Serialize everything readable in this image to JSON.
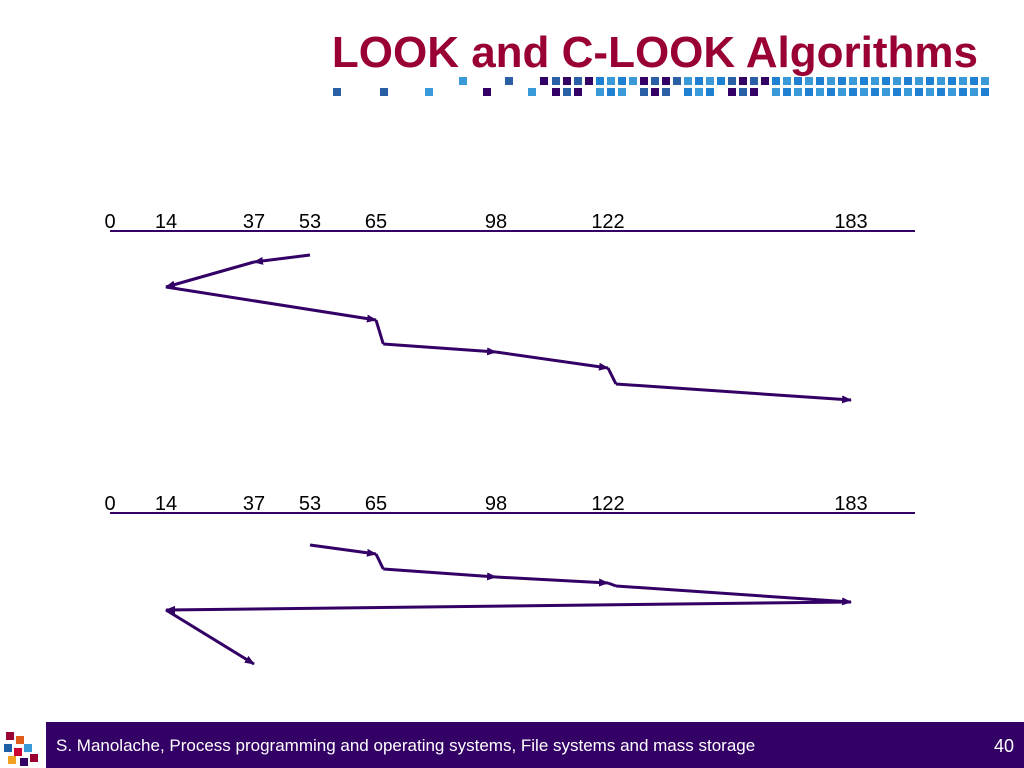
{
  "title": "LOOK and C-LOOK Algorithms",
  "colors": {
    "title": "#990033",
    "accent": "#330066",
    "squares": [
      "#2a5fa6",
      "#3a9ad9",
      "#330066",
      "#1f7fd0"
    ],
    "footer_bg": "#330066",
    "footer_text": "#ffffff"
  },
  "diagrams": [
    {
      "name": "LOOK",
      "axis": {
        "min": 0,
        "max": 199
      },
      "ticks": [
        0,
        14,
        37,
        53,
        65,
        98,
        122,
        183
      ],
      "path": [
        53,
        37,
        14,
        65,
        67,
        98,
        122,
        124,
        183
      ]
    },
    {
      "name": "C-LOOK",
      "axis": {
        "min": 0,
        "max": 199
      },
      "ticks": [
        0,
        14,
        37,
        53,
        65,
        98,
        122,
        183
      ],
      "path": [
        53,
        65,
        67,
        98,
        122,
        124,
        183,
        14,
        37
      ]
    }
  ],
  "footer": {
    "text": "S. Manolache, Process programming and operating systems, File systems and mass storage",
    "page_number": "40"
  }
}
